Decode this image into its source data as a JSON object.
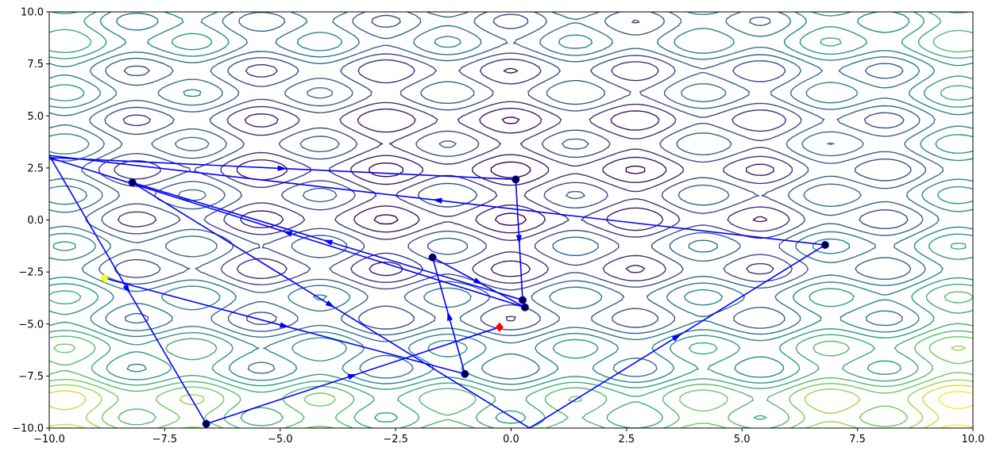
{
  "chart_data": {
    "type": "contour",
    "xlim": [
      -10,
      10
    ],
    "ylim": [
      -10,
      10
    ],
    "xticks": [
      -10.0,
      -7.5,
      -5.0,
      -2.5,
      0.0,
      2.5,
      5.0,
      7.5,
      10.0
    ],
    "yticks": [
      -10.0,
      -7.5,
      -5.0,
      -2.5,
      0.0,
      2.5,
      5.0,
      7.5,
      10.0
    ],
    "xtick_labels": [
      "−10.0",
      "−7.5",
      "−5.0",
      "−2.5",
      "0.0",
      "2.5",
      "5.0",
      "7.5",
      "10.0"
    ],
    "ytick_labels": [
      "−10.0",
      "−7.5",
      "−5.0",
      "−2.5",
      "0.0",
      "2.5",
      "5.0",
      "7.5",
      "10.0"
    ],
    "title": "",
    "xlabel": "",
    "ylabel": "",
    "grid": false,
    "colormap": [
      "#440154",
      "#3b528b",
      "#21918c",
      "#5ec962",
      "#fde725"
    ],
    "contour_minimum": {
      "x": -0.7,
      "y": 2.0
    },
    "path_color": "#0000ff",
    "path": [
      {
        "x": -8.8,
        "y": -2.8,
        "marker": "start"
      },
      {
        "x": -1.0,
        "y": -7.4,
        "marker": "point"
      },
      {
        "x": -1.7,
        "y": -1.8,
        "marker": "point"
      },
      {
        "x": 0.3,
        "y": -4.2,
        "marker": "point"
      },
      {
        "x": -10.0,
        "y": 3.0,
        "marker": "none"
      },
      {
        "x": 0.1,
        "y": 1.95,
        "marker": "point"
      },
      {
        "x": 0.25,
        "y": -3.85,
        "marker": "point"
      },
      {
        "x": -8.2,
        "y": 1.8,
        "marker": "point"
      },
      {
        "x": 0.4,
        "y": -10.0,
        "marker": "none"
      },
      {
        "x": 6.8,
        "y": -1.2,
        "marker": "point"
      },
      {
        "x": -10.0,
        "y": 3.1,
        "marker": "none"
      },
      {
        "x": -6.6,
        "y": -9.8,
        "marker": "point"
      },
      {
        "x": -0.25,
        "y": -5.15,
        "marker": "end"
      }
    ],
    "start_marker_color": "#ffff00",
    "end_marker_color": "#ff0000",
    "point_marker_color": "#000033"
  }
}
